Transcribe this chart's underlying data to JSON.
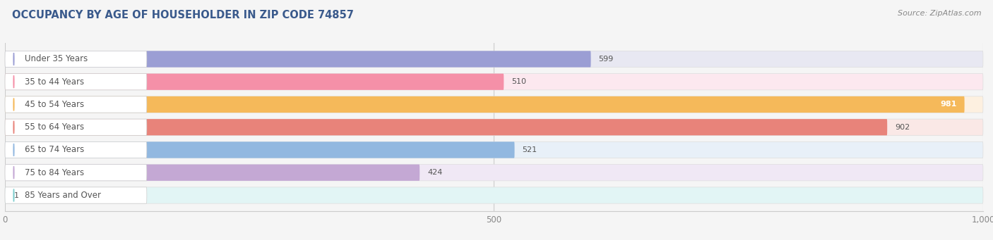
{
  "title": "OCCUPANCY BY AGE OF HOUSEHOLDER IN ZIP CODE 74857",
  "source": "Source: ZipAtlas.com",
  "categories": [
    "Under 35 Years",
    "35 to 44 Years",
    "45 to 54 Years",
    "55 to 64 Years",
    "65 to 74 Years",
    "75 to 84 Years",
    "85 Years and Over"
  ],
  "values": [
    599,
    510,
    981,
    902,
    521,
    424,
    1
  ],
  "bar_colors": [
    "#9b9ed4",
    "#f590a8",
    "#f5b95a",
    "#e8837a",
    "#92b8e0",
    "#c4a8d4",
    "#7ecece"
  ],
  "bg_colors": [
    "#e8e8f2",
    "#fce8ef",
    "#fdf0e0",
    "#fae8e6",
    "#e8f0f8",
    "#f0e8f5",
    "#e2f5f5"
  ],
  "xlim_max": 1000,
  "xticks": [
    0,
    500,
    1000
  ],
  "xtick_labels": [
    "0",
    "500",
    "1,000"
  ],
  "background_color": "#f5f5f5",
  "label_pill_color": "#ffffff",
  "label_text_color": "#555555",
  "value_text_color": "#555555",
  "title_color": "#3a5a8c",
  "source_color": "#888888"
}
